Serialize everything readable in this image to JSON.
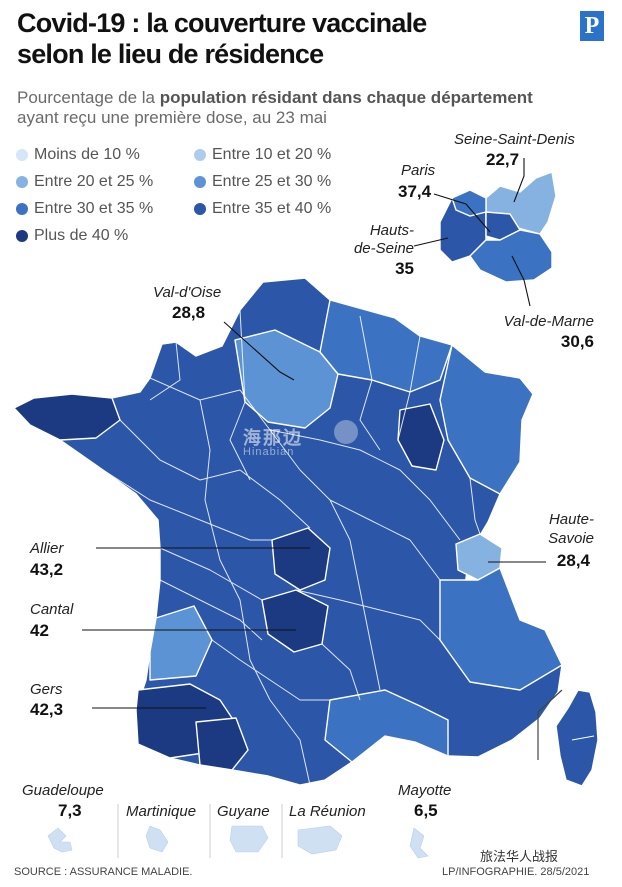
{
  "header": {
    "title_line1": "Covid-19 : la couverture vaccinale",
    "title_line2": "selon le lieu de résidence",
    "logo_letter": "P",
    "subtitle_pre": "Pourcentage de la ",
    "subtitle_bold": "population résidant dans chaque département",
    "subtitle_post": "ayant reçu une première dose, au 23 mai"
  },
  "legend": [
    {
      "label": "Moins de 10 %",
      "color": "#d6e6f6"
    },
    {
      "label": "Entre 10 et 20 %",
      "color": "#aecdee"
    },
    {
      "label": "Entre 20 et 25 %",
      "color": "#86b2e2"
    },
    {
      "label": "Entre 25 et 30 %",
      "color": "#5c93d4"
    },
    {
      "label": "Entre 30 et 35 %",
      "color": "#3b72c2"
    },
    {
      "label": "Entre 35 et 40 %",
      "color": "#2c57a8"
    },
    {
      "label": "Plus de 40 %",
      "color": "#1b3a82"
    }
  ],
  "callouts": {
    "seine_saint_denis": {
      "name": "Seine-Saint-Denis",
      "value": "22,7"
    },
    "paris": {
      "name": "Paris",
      "value": "37,4"
    },
    "hauts_de_seine": {
      "name1": "Hauts-",
      "name2": "de-Seine",
      "value": "35"
    },
    "val_de_marne": {
      "name": "Val-de-Marne",
      "value": "30,6"
    },
    "val_d_oise": {
      "name": "Val-d'Oise",
      "value": "28,8"
    },
    "haute_savoie": {
      "name1": "Haute-",
      "name2": "Savoie",
      "value": "28,4"
    },
    "allier": {
      "name": "Allier",
      "value": "43,2"
    },
    "cantal": {
      "name": "Cantal",
      "value": "42"
    },
    "gers": {
      "name": "Gers",
      "value": "42,3"
    }
  },
  "overseas": [
    {
      "name": "Guadeloupe",
      "value": "7,3"
    },
    {
      "name": "Martinique",
      "value": ""
    },
    {
      "name": "Guyane",
      "value": ""
    },
    {
      "name": "La Réunion",
      "value": ""
    },
    {
      "name": "Mayotte",
      "value": "6,5"
    }
  ],
  "footer": {
    "source": "SOURCE : ASSURANCE MALADIE.",
    "credit": "LP/INFOGRAPHIE.  28/5/2021"
  },
  "watermarks": {
    "account": "旅法华人战报",
    "site_cn": "海那边",
    "site_en": "Hinabian"
  }
}
